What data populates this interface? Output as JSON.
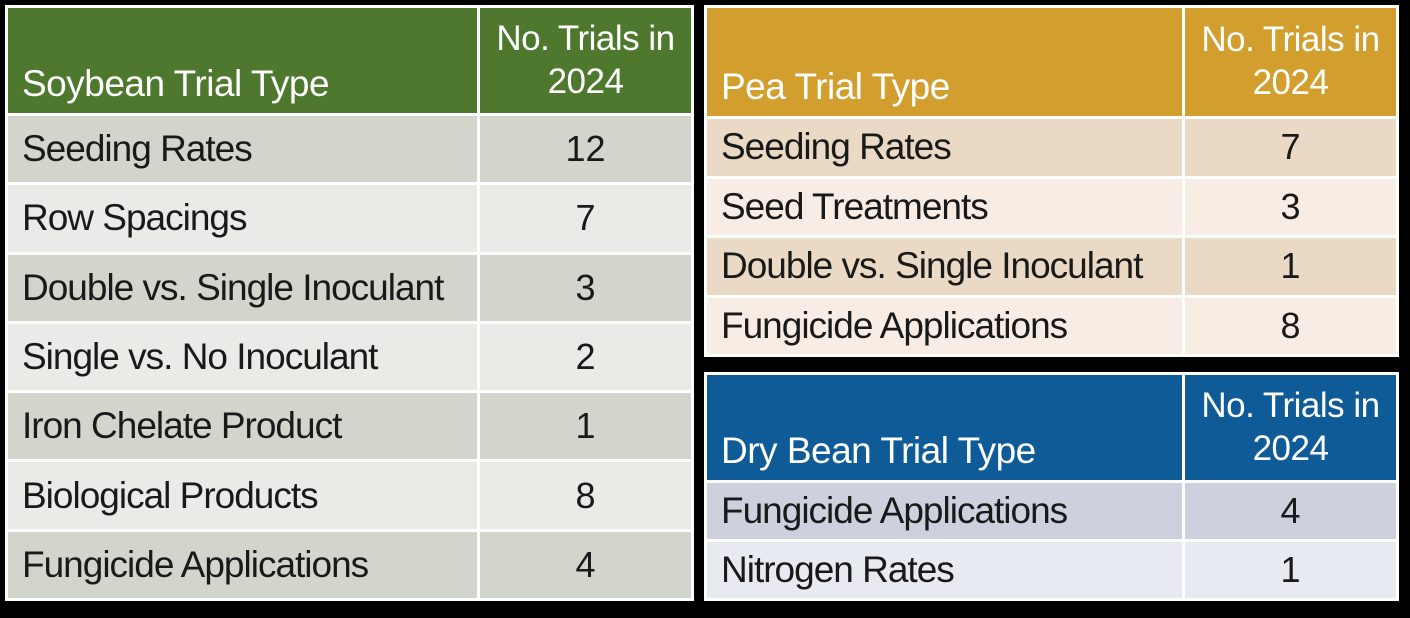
{
  "canvas_background": "#000000",
  "grid_line_color": "#ffffff",
  "row_text_color": "#191919",
  "chart_data": [
    {
      "type": "table",
      "title": "Soybean Trial Type",
      "count_header": "No. Trials in 2024",
      "columns": [
        "Soybean Trial Type",
        "No. Trials in 2024"
      ],
      "colors": {
        "header_bg": "#4d782e",
        "header_text": "#ffffff",
        "row_odd": "#d1d5cc",
        "row_even": "#e9ebe7"
      },
      "rows": [
        [
          "Seeding Rates",
          "12"
        ],
        [
          "Row Spacings",
          "7"
        ],
        [
          "Double vs. Single Inoculant",
          "3"
        ],
        [
          "Single vs. No Inoculant",
          "2"
        ],
        [
          "Iron Chelate Product",
          "1"
        ],
        [
          "Biological Products",
          "8"
        ],
        [
          "Fungicide Applications",
          "4"
        ]
      ]
    },
    {
      "type": "table",
      "title": "Pea Trial Type",
      "count_header": "No. Trials in 2024",
      "columns": [
        "Pea Trial Type",
        "No. Trials in 2024"
      ],
      "colors": {
        "header_bg": "#d29e2e",
        "header_text": "#ffffff",
        "row_odd": "#ead9c5",
        "row_even": "#f8ede5"
      },
      "rows": [
        [
          "Seeding Rates",
          "7"
        ],
        [
          "Seed Treatments",
          "3"
        ],
        [
          "Double vs. Single Inoculant",
          "1"
        ],
        [
          "Fungicide Applications",
          "8"
        ]
      ]
    },
    {
      "type": "table",
      "title": "Dry Bean Trial Type",
      "count_header": "No. Trials in 2024",
      "columns": [
        "Dry Bean Trial Type",
        "No. Trials in 2024"
      ],
      "colors": {
        "header_bg": "#0f5b98",
        "header_text": "#ffffff",
        "row_odd": "#ccd1dd",
        "row_even": "#e8eaf1"
      },
      "rows": [
        [
          "Fungicide Applications",
          "4"
        ],
        [
          "Nitrogen Rates",
          "1"
        ]
      ]
    }
  ]
}
